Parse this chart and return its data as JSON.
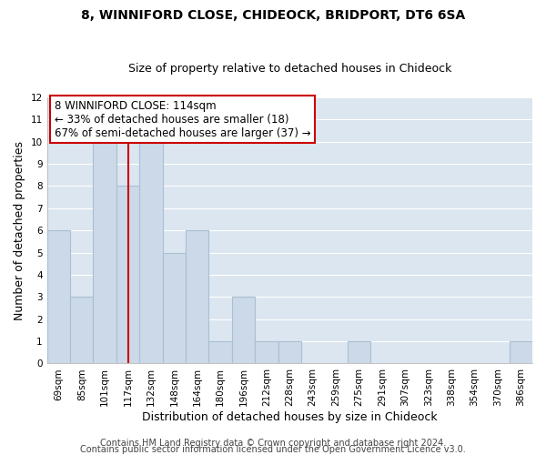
{
  "title": "8, WINNIFORD CLOSE, CHIDEOCK, BRIDPORT, DT6 6SA",
  "subtitle": "Size of property relative to detached houses in Chideock",
  "xlabel": "Distribution of detached houses by size in Chideock",
  "ylabel": "Number of detached properties",
  "bins": [
    "69sqm",
    "85sqm",
    "101sqm",
    "117sqm",
    "132sqm",
    "148sqm",
    "164sqm",
    "180sqm",
    "196sqm",
    "212sqm",
    "228sqm",
    "243sqm",
    "259sqm",
    "275sqm",
    "291sqm",
    "307sqm",
    "323sqm",
    "338sqm",
    "354sqm",
    "370sqm",
    "386sqm"
  ],
  "counts": [
    6,
    3,
    10,
    8,
    10,
    5,
    6,
    1,
    3,
    1,
    1,
    0,
    0,
    1,
    0,
    0,
    0,
    0,
    0,
    0,
    1
  ],
  "bar_color": "#ccd9e8",
  "bar_edge_color": "#a8bfd4",
  "vline_index": 3,
  "vline_color": "#cc0000",
  "annotation_text": "8 WINNIFORD CLOSE: 114sqm\n← 33% of detached houses are smaller (18)\n67% of semi-detached houses are larger (37) →",
  "annotation_box_color": "#ffffff",
  "annotation_box_edge": "#cc0000",
  "ylim": [
    0,
    12
  ],
  "yticks": [
    0,
    1,
    2,
    3,
    4,
    5,
    6,
    7,
    8,
    9,
    10,
    11,
    12
  ],
  "footer1": "Contains HM Land Registry data © Crown copyright and database right 2024.",
  "footer2": "Contains public sector information licensed under the Open Government Licence v3.0.",
  "fig_background_color": "#ffffff",
  "plot_background_color": "#dce6f0",
  "grid_color": "#ffffff",
  "title_fontsize": 10,
  "subtitle_fontsize": 9,
  "axis_label_fontsize": 9,
  "tick_fontsize": 7.5,
  "annotation_fontsize": 8.5,
  "footer_fontsize": 7
}
